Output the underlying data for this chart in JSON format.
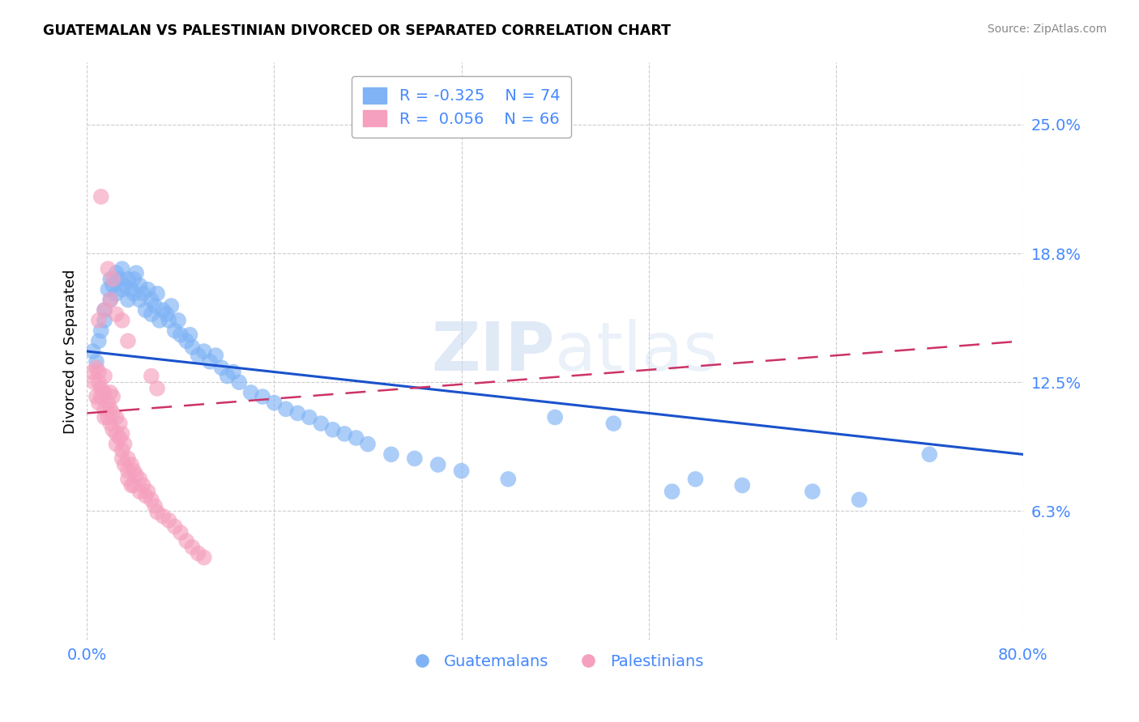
{
  "title": "GUATEMALAN VS PALESTINIAN DIVORCED OR SEPARATED CORRELATION CHART",
  "source": "Source: ZipAtlas.com",
  "xlabel": "",
  "ylabel": "Divorced or Separated",
  "xmin": 0.0,
  "xmax": 0.8,
  "ymin": 0.0,
  "ymax": 0.28,
  "yticks": [
    0.0625,
    0.125,
    0.1875,
    0.25
  ],
  "ytick_labels": [
    "6.3%",
    "12.5%",
    "18.8%",
    "25.0%"
  ],
  "xticks": [
    0.0,
    0.16,
    0.32,
    0.48,
    0.64,
    0.8
  ],
  "xtick_labels": [
    "0.0%",
    "",
    "",
    "",
    "",
    "80.0%"
  ],
  "watermark": "ZIPatlas",
  "legend_blue_r": "-0.325",
  "legend_blue_n": "74",
  "legend_pink_r": "0.056",
  "legend_pink_n": "66",
  "blue_color": "#7fb3f5",
  "pink_color": "#f5a0be",
  "blue_line_color": "#1a52cc",
  "pink_line_color": "#cc3366",
  "blue_line_x0": 0.0,
  "blue_line_y0": 0.14,
  "blue_line_x1": 0.8,
  "blue_line_y1": 0.09,
  "pink_line_x0": 0.0,
  "pink_line_y0": 0.11,
  "pink_line_x1": 0.8,
  "pink_line_y1": 0.145,
  "guatemalans_x": [
    0.005,
    0.008,
    0.01,
    0.012,
    0.015,
    0.015,
    0.018,
    0.02,
    0.02,
    0.022,
    0.025,
    0.025,
    0.028,
    0.03,
    0.03,
    0.032,
    0.035,
    0.035,
    0.038,
    0.04,
    0.04,
    0.042,
    0.045,
    0.045,
    0.048,
    0.05,
    0.052,
    0.055,
    0.055,
    0.058,
    0.06,
    0.062,
    0.065,
    0.068,
    0.07,
    0.072,
    0.075,
    0.078,
    0.08,
    0.085,
    0.088,
    0.09,
    0.095,
    0.1,
    0.105,
    0.11,
    0.115,
    0.12,
    0.125,
    0.13,
    0.14,
    0.15,
    0.16,
    0.17,
    0.18,
    0.19,
    0.2,
    0.21,
    0.22,
    0.23,
    0.24,
    0.26,
    0.28,
    0.3,
    0.32,
    0.36,
    0.4,
    0.45,
    0.5,
    0.52,
    0.56,
    0.62,
    0.66,
    0.72
  ],
  "guatemalans_y": [
    0.14,
    0.135,
    0.145,
    0.15,
    0.155,
    0.16,
    0.17,
    0.165,
    0.175,
    0.172,
    0.168,
    0.178,
    0.175,
    0.17,
    0.18,
    0.172,
    0.175,
    0.165,
    0.17,
    0.168,
    0.175,
    0.178,
    0.172,
    0.165,
    0.168,
    0.16,
    0.17,
    0.165,
    0.158,
    0.162,
    0.168,
    0.155,
    0.16,
    0.158,
    0.155,
    0.162,
    0.15,
    0.155,
    0.148,
    0.145,
    0.148,
    0.142,
    0.138,
    0.14,
    0.135,
    0.138,
    0.132,
    0.128,
    0.13,
    0.125,
    0.12,
    0.118,
    0.115,
    0.112,
    0.11,
    0.108,
    0.105,
    0.102,
    0.1,
    0.098,
    0.095,
    0.09,
    0.088,
    0.085,
    0.082,
    0.078,
    0.108,
    0.105,
    0.072,
    0.078,
    0.075,
    0.072,
    0.068,
    0.09
  ],
  "palestinians_x": [
    0.005,
    0.006,
    0.008,
    0.008,
    0.01,
    0.01,
    0.01,
    0.012,
    0.012,
    0.015,
    0.015,
    0.015,
    0.015,
    0.018,
    0.018,
    0.02,
    0.02,
    0.02,
    0.022,
    0.022,
    0.022,
    0.025,
    0.025,
    0.025,
    0.028,
    0.028,
    0.03,
    0.03,
    0.03,
    0.032,
    0.032,
    0.035,
    0.035,
    0.035,
    0.038,
    0.038,
    0.04,
    0.04,
    0.042,
    0.045,
    0.045,
    0.048,
    0.05,
    0.052,
    0.055,
    0.058,
    0.06,
    0.065,
    0.07,
    0.075,
    0.08,
    0.085,
    0.09,
    0.095,
    0.1,
    0.01,
    0.015,
    0.02,
    0.025,
    0.03,
    0.012,
    0.018,
    0.022,
    0.035,
    0.055,
    0.06
  ],
  "palestinians_y": [
    0.13,
    0.125,
    0.132,
    0.118,
    0.13,
    0.125,
    0.115,
    0.122,
    0.118,
    0.128,
    0.12,
    0.112,
    0.108,
    0.115,
    0.108,
    0.12,
    0.112,
    0.105,
    0.118,
    0.11,
    0.102,
    0.108,
    0.1,
    0.095,
    0.105,
    0.098,
    0.1,
    0.092,
    0.088,
    0.095,
    0.085,
    0.088,
    0.082,
    0.078,
    0.085,
    0.075,
    0.082,
    0.075,
    0.08,
    0.078,
    0.072,
    0.075,
    0.07,
    0.072,
    0.068,
    0.065,
    0.062,
    0.06,
    0.058,
    0.055,
    0.052,
    0.048,
    0.045,
    0.042,
    0.04,
    0.155,
    0.16,
    0.165,
    0.158,
    0.155,
    0.215,
    0.18,
    0.175,
    0.145,
    0.128,
    0.122
  ]
}
